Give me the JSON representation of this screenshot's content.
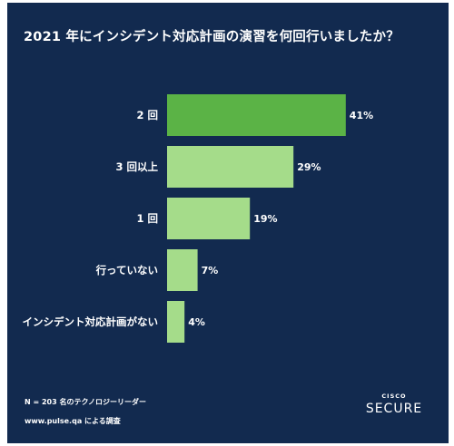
{
  "title": "2021 年にインシデント対応計画の演習を何回行いましたか？",
  "footnote": {
    "sample": "N = 203 名のテクノロジーリーダー",
    "source": "www.pulse.qa による調査"
  },
  "logo": {
    "brand": "CISCO",
    "product": "SECURE"
  },
  "colors": {
    "background": "#122a4f",
    "highlight_bar": "#5bb346",
    "bar": "#a5dc8a",
    "text": "#ffffff"
  },
  "chart_data": {
    "type": "bar",
    "orientation": "horizontal",
    "categories": [
      "2 回",
      "3 回以上",
      "1 回",
      "行っていない",
      "インシデント対応計画がない"
    ],
    "values": [
      41,
      29,
      19,
      7,
      4
    ],
    "value_labels": [
      "41%",
      "29%",
      "19%",
      "7%",
      "4%"
    ],
    "unit": "%",
    "highlight_index": 0,
    "grid": false,
    "legend": "none"
  }
}
